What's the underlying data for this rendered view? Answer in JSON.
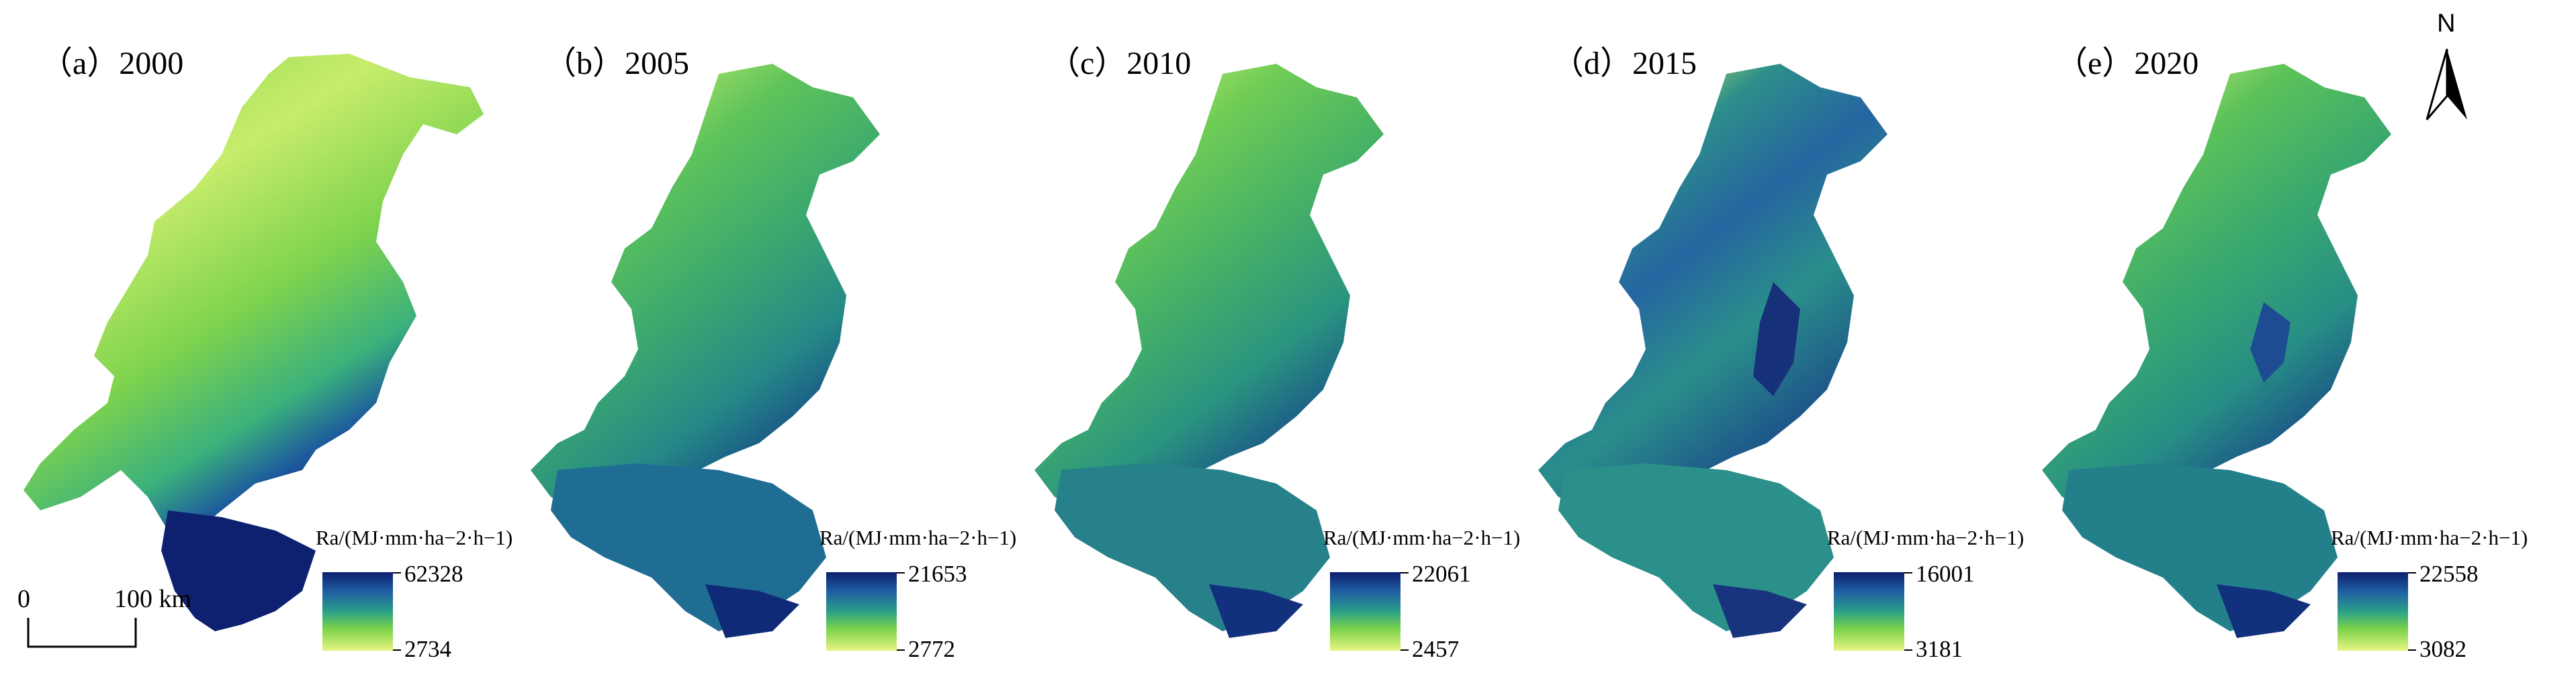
{
  "panels": [
    {
      "title": "（a）2000",
      "legend_title": "Ra/(MJ·mm·ha−2·h−1)",
      "legend_max": "62328",
      "legend_min": "2734"
    },
    {
      "title": "（b）2005",
      "legend_title": "Ra/(MJ·mm·ha−2·h−1)",
      "legend_max": "21653",
      "legend_min": "2772"
    },
    {
      "title": "（c）2010",
      "legend_title": "Ra/(MJ·mm·ha−2·h−1)",
      "legend_max": "22061",
      "legend_min": "2457"
    },
    {
      "title": "（d）2015",
      "legend_title": "Ra/(MJ·mm·ha−2·h−1)",
      "legend_max": "16001",
      "legend_min": "3181"
    },
    {
      "title": "（e）2020",
      "legend_title": "Ra/(MJ·mm·ha−2·h−1)",
      "legend_max": "22558",
      "legend_min": "3082"
    }
  ],
  "scale": {
    "zero": "0",
    "distance": "100 km"
  },
  "north_label": "N",
  "colormap": {
    "high": "#0d1f6e",
    "mid": "#2aa08a",
    "low": "#e8f583"
  }
}
